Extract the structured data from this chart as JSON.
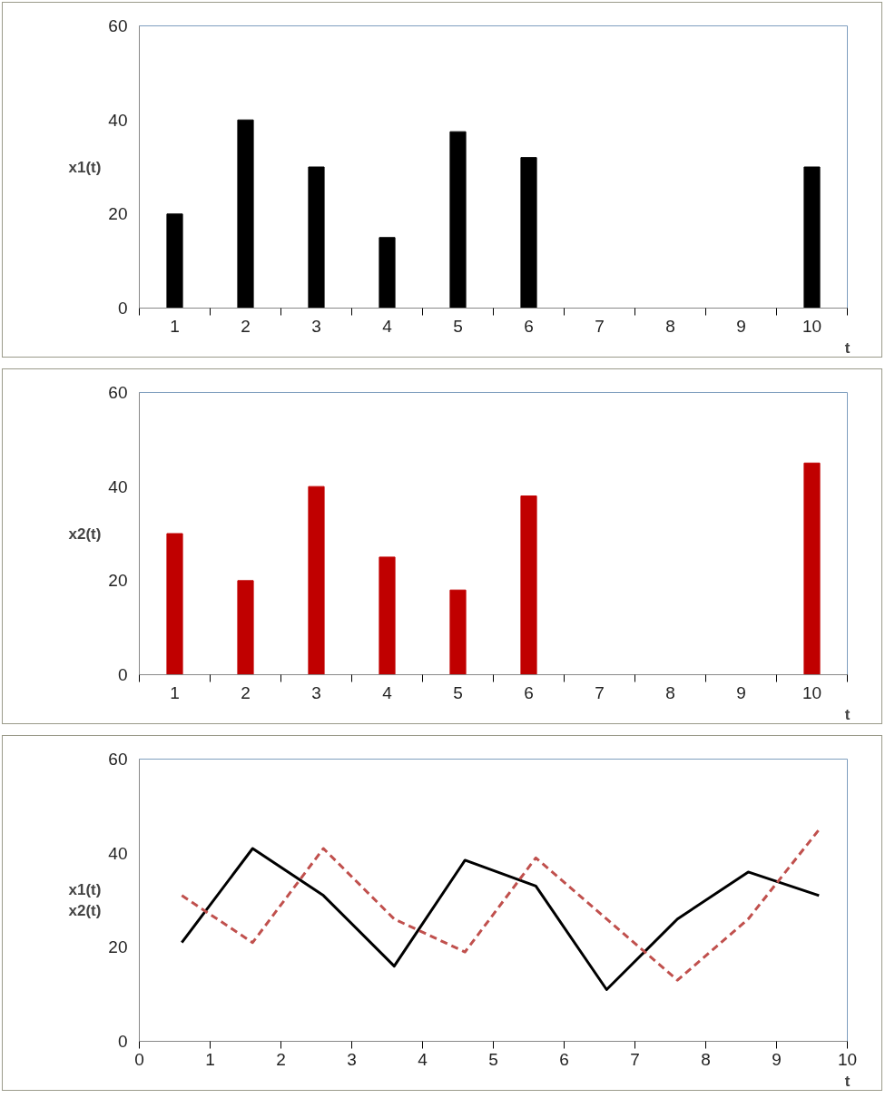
{
  "chart_data": [
    {
      "type": "bar",
      "ylabel": "x1(t)",
      "xlabel": "t",
      "categories": [
        "1",
        "2",
        "3",
        "4",
        "5",
        "6",
        "7",
        "8",
        "9",
        "10"
      ],
      "values": [
        20,
        40,
        30,
        15,
        37.5,
        32,
        null,
        null,
        null,
        30
      ],
      "color": "#000000",
      "ylim": [
        0,
        60
      ],
      "yticks": [
        0,
        20,
        40,
        60
      ],
      "grid": false
    },
    {
      "type": "bar",
      "ylabel": "x2(t)",
      "xlabel": "t",
      "categories": [
        "1",
        "2",
        "3",
        "4",
        "5",
        "6",
        "7",
        "8",
        "9",
        "10"
      ],
      "values": [
        30,
        20,
        40,
        25,
        18,
        38,
        null,
        null,
        null,
        45
      ],
      "color": "#c00000",
      "ylim": [
        0,
        60
      ],
      "yticks": [
        0,
        20,
        40,
        60
      ],
      "grid": false
    },
    {
      "type": "line",
      "ylabel": "x1(t)\nx2(t)",
      "xlabel": "t",
      "x": [
        0.6,
        1.6,
        2.6,
        3.6,
        4.6,
        5.6,
        6.6,
        7.6,
        8.6,
        9.6
      ],
      "series": [
        {
          "color": "#000000",
          "line_style": "solid",
          "values": [
            21,
            41,
            31,
            16,
            38.5,
            33,
            11,
            26,
            36,
            31
          ]
        },
        {
          "color": "#c0504d",
          "line_style": "dashed",
          "values": [
            31,
            21,
            41,
            26,
            19,
            39,
            26,
            13,
            26,
            45
          ]
        }
      ],
      "xlim": [
        0,
        10
      ],
      "xticks": [
        0,
        1,
        2,
        3,
        4,
        5,
        6,
        7,
        8,
        9,
        10
      ],
      "ylim": [
        0,
        60
      ],
      "yticks": [
        0,
        20,
        40,
        60
      ],
      "grid": false
    }
  ]
}
